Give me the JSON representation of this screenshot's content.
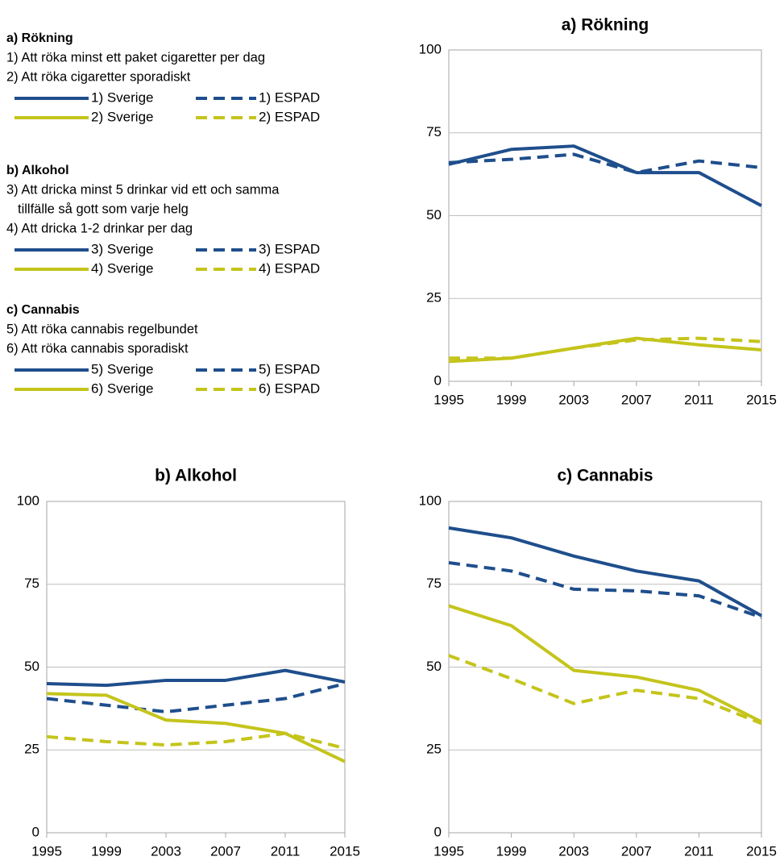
{
  "chart_data": [
    {
      "type": "line",
      "title": "a) Rökning",
      "legend_title": "a) Rökning",
      "legend_notes": [
        "1) Att röka minst ett paket cigaretter per dag",
        "2) Att röka cigaretter sporadiskt"
      ],
      "x": [
        1995,
        1999,
        2003,
        2007,
        2011,
        2015
      ],
      "xlim": [
        1995,
        2015
      ],
      "xticks": [
        1995,
        1999,
        2003,
        2007,
        2011,
        2015
      ],
      "ylim": [
        0,
        100
      ],
      "yticks": [
        0,
        25,
        50,
        75,
        100
      ],
      "grid": true,
      "series": [
        {
          "name": "1) Sverige",
          "color": "#1f4e8c",
          "dashed": false,
          "values": [
            65.5,
            70,
            71,
            63,
            63,
            53
          ]
        },
        {
          "name": "1) ESPAD",
          "color": "#1f4e8c",
          "dashed": true,
          "values": [
            66,
            67,
            68.5,
            63,
            66.5,
            64.5
          ]
        },
        {
          "name": "2) Sverige",
          "color": "#c4c41c",
          "dashed": false,
          "values": [
            6,
            7,
            10,
            13,
            11,
            9.5
          ]
        },
        {
          "name": "2) ESPAD",
          "color": "#c4c41c",
          "dashed": true,
          "values": [
            7,
            7,
            10,
            12.5,
            13,
            12
          ]
        }
      ]
    },
    {
      "type": "line",
      "title": "b) Alkohol",
      "legend_title": "b) Alkohol",
      "legend_notes": [
        "3) Att dricka minst 5 drinkar vid ett och samma",
        "tillfälle så gott som varje helg",
        "4) Att dricka 1-2 drinkar per dag"
      ],
      "x": [
        1995,
        1999,
        2003,
        2007,
        2011,
        2015
      ],
      "xlim": [
        1995,
        2015
      ],
      "xticks": [
        1995,
        1999,
        2003,
        2007,
        2011,
        2015
      ],
      "ylim": [
        0,
        100
      ],
      "yticks": [
        0,
        25,
        50,
        75,
        100
      ],
      "grid": true,
      "series": [
        {
          "name": "3) Sverige",
          "color": "#1f4e8c",
          "dashed": false,
          "values": [
            45,
            44.5,
            46,
            46,
            49,
            45.5
          ]
        },
        {
          "name": "3) ESPAD",
          "color": "#1f4e8c",
          "dashed": true,
          "values": [
            40.5,
            38.5,
            36.5,
            38.5,
            40.5,
            45
          ]
        },
        {
          "name": "4) Sverige",
          "color": "#c4c41c",
          "dashed": false,
          "values": [
            42,
            41.5,
            34,
            33,
            30,
            21.5
          ]
        },
        {
          "name": "4) ESPAD",
          "color": "#c4c41c",
          "dashed": true,
          "values": [
            29,
            27.5,
            26.5,
            27.5,
            30,
            25.5
          ]
        }
      ]
    },
    {
      "type": "line",
      "title": "c) Cannabis",
      "legend_title": "c) Cannabis",
      "legend_notes": [
        "5) Att röka cannabis regelbundet",
        "6) Att röka cannabis sporadiskt"
      ],
      "x": [
        1995,
        1999,
        2003,
        2007,
        2011,
        2015
      ],
      "xlim": [
        1995,
        2015
      ],
      "xticks": [
        1995,
        1999,
        2003,
        2007,
        2011,
        2015
      ],
      "ylim": [
        0,
        100
      ],
      "yticks": [
        0,
        25,
        50,
        75,
        100
      ],
      "grid": true,
      "series": [
        {
          "name": "5) Sverige",
          "color": "#1f4e8c",
          "dashed": false,
          "values": [
            92,
            89,
            83.5,
            79,
            76,
            65.5
          ]
        },
        {
          "name": "5) ESPAD",
          "color": "#1f4e8c",
          "dashed": true,
          "values": [
            81.5,
            79,
            73.5,
            73,
            71.5,
            65
          ]
        },
        {
          "name": "6) Sverige",
          "color": "#c4c41c",
          "dashed": false,
          "values": [
            68.5,
            62.5,
            49,
            47,
            43,
            33.5
          ]
        },
        {
          "name": "6) ESPAD",
          "color": "#c4c41c",
          "dashed": true,
          "values": [
            53.5,
            46.5,
            39,
            43,
            40.5,
            33
          ]
        }
      ]
    }
  ]
}
